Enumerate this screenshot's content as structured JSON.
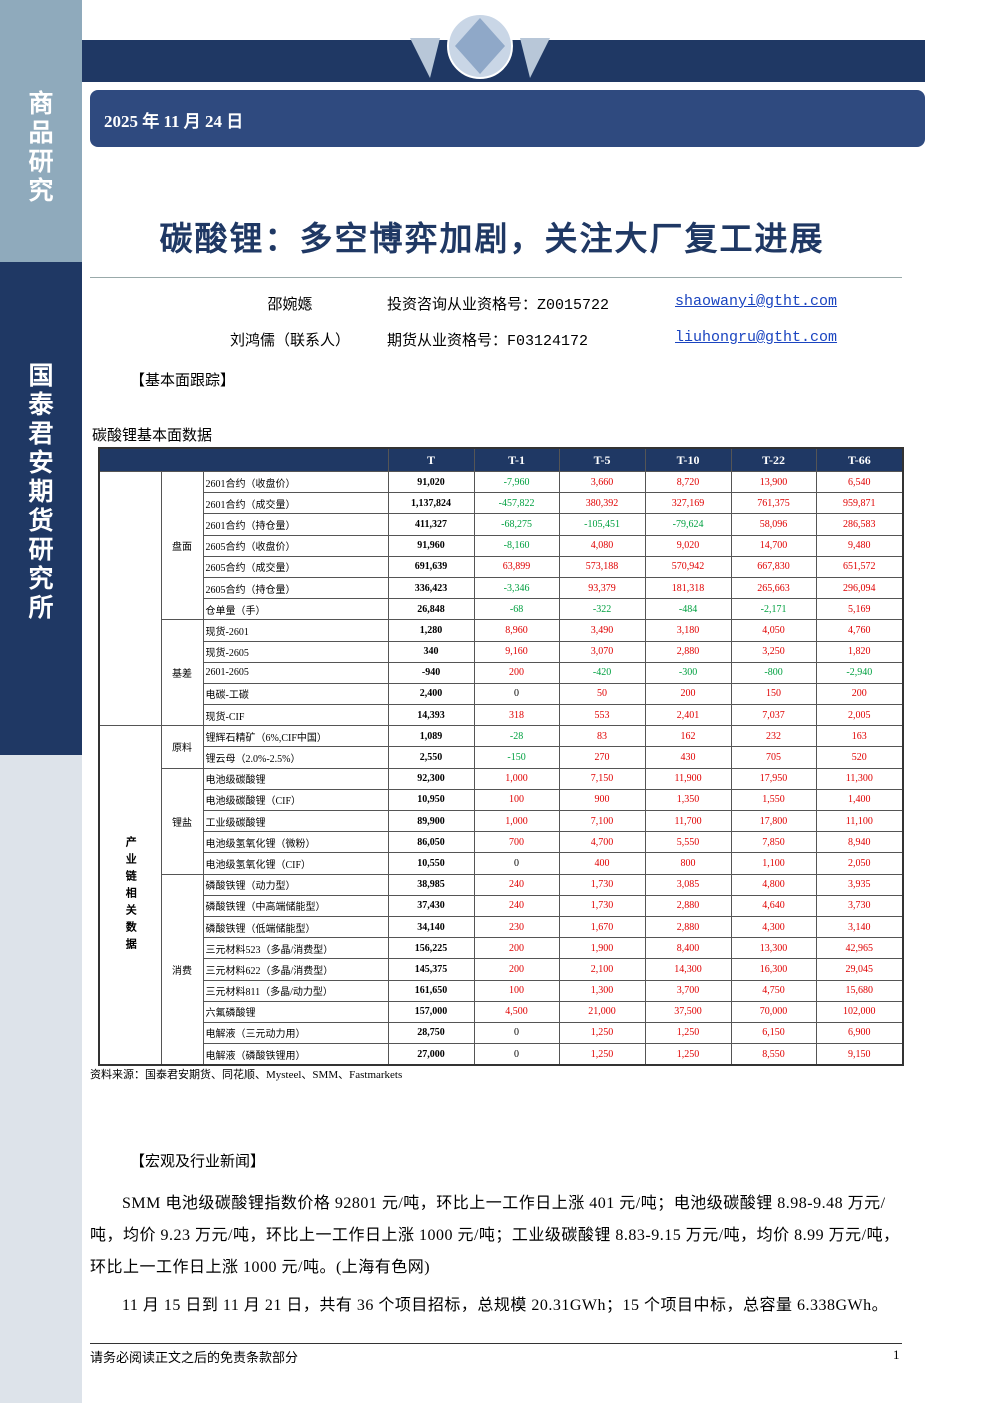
{
  "sidebar": {
    "section": "商品研究",
    "institute": "国泰君安期货研究所"
  },
  "header": {
    "date": "2025 年 11 月 24 日",
    "title": "碳酸锂：多空博弈加剧，关注大厂复工进展"
  },
  "authors": [
    {
      "name": "邵婉嫕",
      "license": "投资咨询从业资格号：Z0015722",
      "email": "shaowanyi@gtht.com"
    },
    {
      "name": "刘鸿儒（联系人）",
      "license": "期货从业资格号：F03124172",
      "email": "liuhongru@gtht.com"
    }
  ],
  "section1": "【基本面跟踪】",
  "table": {
    "caption": "碳酸锂基本面数据",
    "columns": [
      "T",
      "T-1",
      "T-5",
      "T-10",
      "T-22",
      "T-66"
    ],
    "groups": [
      {
        "subgroups": [
          {
            "label": "盘面",
            "rows": [
              {
                "name": "2601合约（收盘价）",
                "values": [
                  "91,020",
                  "-7,960",
                  "3,660",
                  "8,720",
                  "13,900",
                  "6,540"
                ]
              },
              {
                "name": "2601合约（成交量）",
                "values": [
                  "1,137,824",
                  "-457,822",
                  "380,392",
                  "327,169",
                  "761,375",
                  "959,871"
                ]
              },
              {
                "name": "2601合约（持仓量）",
                "values": [
                  "411,327",
                  "-68,275",
                  "-105,451",
                  "-79,624",
                  "58,096",
                  "286,583"
                ]
              },
              {
                "name": "2605合约（收盘价）",
                "values": [
                  "91,960",
                  "-8,160",
                  "4,080",
                  "9,020",
                  "14,700",
                  "9,480"
                ]
              },
              {
                "name": "2605合约（成交量）",
                "values": [
                  "691,639",
                  "63,899",
                  "573,188",
                  "570,942",
                  "667,830",
                  "651,572"
                ]
              },
              {
                "name": "2605合约（持仓量）",
                "values": [
                  "336,423",
                  "-3,346",
                  "93,379",
                  "181,318",
                  "265,663",
                  "296,094"
                ]
              },
              {
                "name": "仓单量（手）",
                "values": [
                  "26,848",
                  "-68",
                  "-322",
                  "-484",
                  "-2,171",
                  "5,169"
                ]
              }
            ]
          },
          {
            "label": "基差",
            "rows": [
              {
                "name": "现货-2601",
                "values": [
                  "1,280",
                  "8,960",
                  "3,490",
                  "3,180",
                  "4,050",
                  "4,760"
                ]
              },
              {
                "name": "现货-2605",
                "values": [
                  "340",
                  "9,160",
                  "3,070",
                  "2,880",
                  "3,250",
                  "1,820"
                ]
              },
              {
                "name": "2601-2605",
                "values": [
                  "-940",
                  "200",
                  "-420",
                  "-300",
                  "-800",
                  "-2,940"
                ]
              },
              {
                "name": "电碳-工碳",
                "values": [
                  "2,400",
                  "0",
                  "50",
                  "200",
                  "150",
                  "200"
                ]
              },
              {
                "name": "现货-CIF",
                "values": [
                  "14,393",
                  "318",
                  "553",
                  "2,401",
                  "7,037",
                  "2,005"
                ]
              }
            ]
          }
        ]
      },
      {
        "label": "产业链相关数据",
        "subgroups": [
          {
            "label": "原料",
            "rows": [
              {
                "name": "锂辉石精矿（6%,CIF中国）",
                "values": [
                  "1,089",
                  "-28",
                  "83",
                  "162",
                  "232",
                  "163"
                ]
              },
              {
                "name": "锂云母（2.0%-2.5%）",
                "values": [
                  "2,550",
                  "-150",
                  "270",
                  "430",
                  "705",
                  "520"
                ]
              }
            ]
          },
          {
            "label": "锂盐",
            "rows": [
              {
                "name": "电池级碳酸锂",
                "values": [
                  "92,300",
                  "1,000",
                  "7,150",
                  "11,900",
                  "17,950",
                  "11,300"
                ]
              },
              {
                "name": "电池级碳酸锂（CIF）",
                "values": [
                  "10,950",
                  "100",
                  "900",
                  "1,350",
                  "1,550",
                  "1,400"
                ]
              },
              {
                "name": "工业级碳酸锂",
                "values": [
                  "89,900",
                  "1,000",
                  "7,100",
                  "11,700",
                  "17,800",
                  "11,100"
                ]
              },
              {
                "name": "电池级氢氧化锂（微粉）",
                "values": [
                  "86,050",
                  "700",
                  "4,700",
                  "5,550",
                  "7,850",
                  "8,940"
                ]
              },
              {
                "name": "电池级氢氧化锂（CIF）",
                "values": [
                  "10,550",
                  "0",
                  "400",
                  "800",
                  "1,100",
                  "2,050"
                ]
              }
            ]
          },
          {
            "label": "消费",
            "rows": [
              {
                "name": "磷酸铁锂（动力型）",
                "values": [
                  "38,985",
                  "240",
                  "1,730",
                  "3,085",
                  "4,800",
                  "3,935"
                ]
              },
              {
                "name": "磷酸铁锂（中高端储能型）",
                "values": [
                  "37,430",
                  "240",
                  "1,730",
                  "2,880",
                  "4,640",
                  "3,730"
                ]
              },
              {
                "name": "磷酸铁锂（低端储能型）",
                "values": [
                  "34,140",
                  "230",
                  "1,670",
                  "2,880",
                  "4,300",
                  "3,140"
                ]
              },
              {
                "name": "三元材料523（多晶/消费型）",
                "values": [
                  "156,225",
                  "200",
                  "1,900",
                  "8,400",
                  "13,300",
                  "42,965"
                ]
              },
              {
                "name": "三元材料622（多晶/消费型）",
                "values": [
                  "145,375",
                  "200",
                  "2,100",
                  "14,300",
                  "16,300",
                  "29,045"
                ]
              },
              {
                "name": "三元材料811（多晶/动力型）",
                "values": [
                  "161,650",
                  "100",
                  "1,300",
                  "3,700",
                  "4,750",
                  "15,680"
                ]
              },
              {
                "name": "六氟磷酸锂",
                "values": [
                  "157,000",
                  "4,500",
                  "21,000",
                  "37,500",
                  "70,000",
                  "102,000"
                ]
              },
              {
                "name": "电解液（三元动力用）",
                "values": [
                  "28,750",
                  "0",
                  "1,250",
                  "1,250",
                  "6,150",
                  "6,900"
                ]
              },
              {
                "name": "电解液（磷酸铁锂用）",
                "values": [
                  "27,000",
                  "0",
                  "1,250",
                  "1,250",
                  "8,550",
                  "9,150"
                ]
              }
            ]
          }
        ]
      }
    ],
    "source": "资料来源：国泰君安期货、同花顺、Mysteel、SMM、Fastmarkets"
  },
  "section2": "【宏观及行业新闻】",
  "paragraphs": [
    "SMM 电池级碳酸锂指数价格 92801 元/吨，环比上一工作日上涨 401 元/吨；电池级碳酸锂 8.98-9.48 万元/吨，均价 9.23 万元/吨，环比上一工作日上涨 1000 元/吨；工业级碳酸锂 8.83-9.15 万元/吨，均价 8.99 万元/吨，环比上一工作日上涨 1000 元/吨。(上海有色网)",
    "11 月 15 日到 11 月 21 日，共有 36 个项目招标，总规模 20.31GWh；15 个项目中标，总容量 6.338GWh。"
  ],
  "footer": {
    "disclaimer": "请务必阅读正文之后的免责条款部分",
    "page": "1"
  }
}
